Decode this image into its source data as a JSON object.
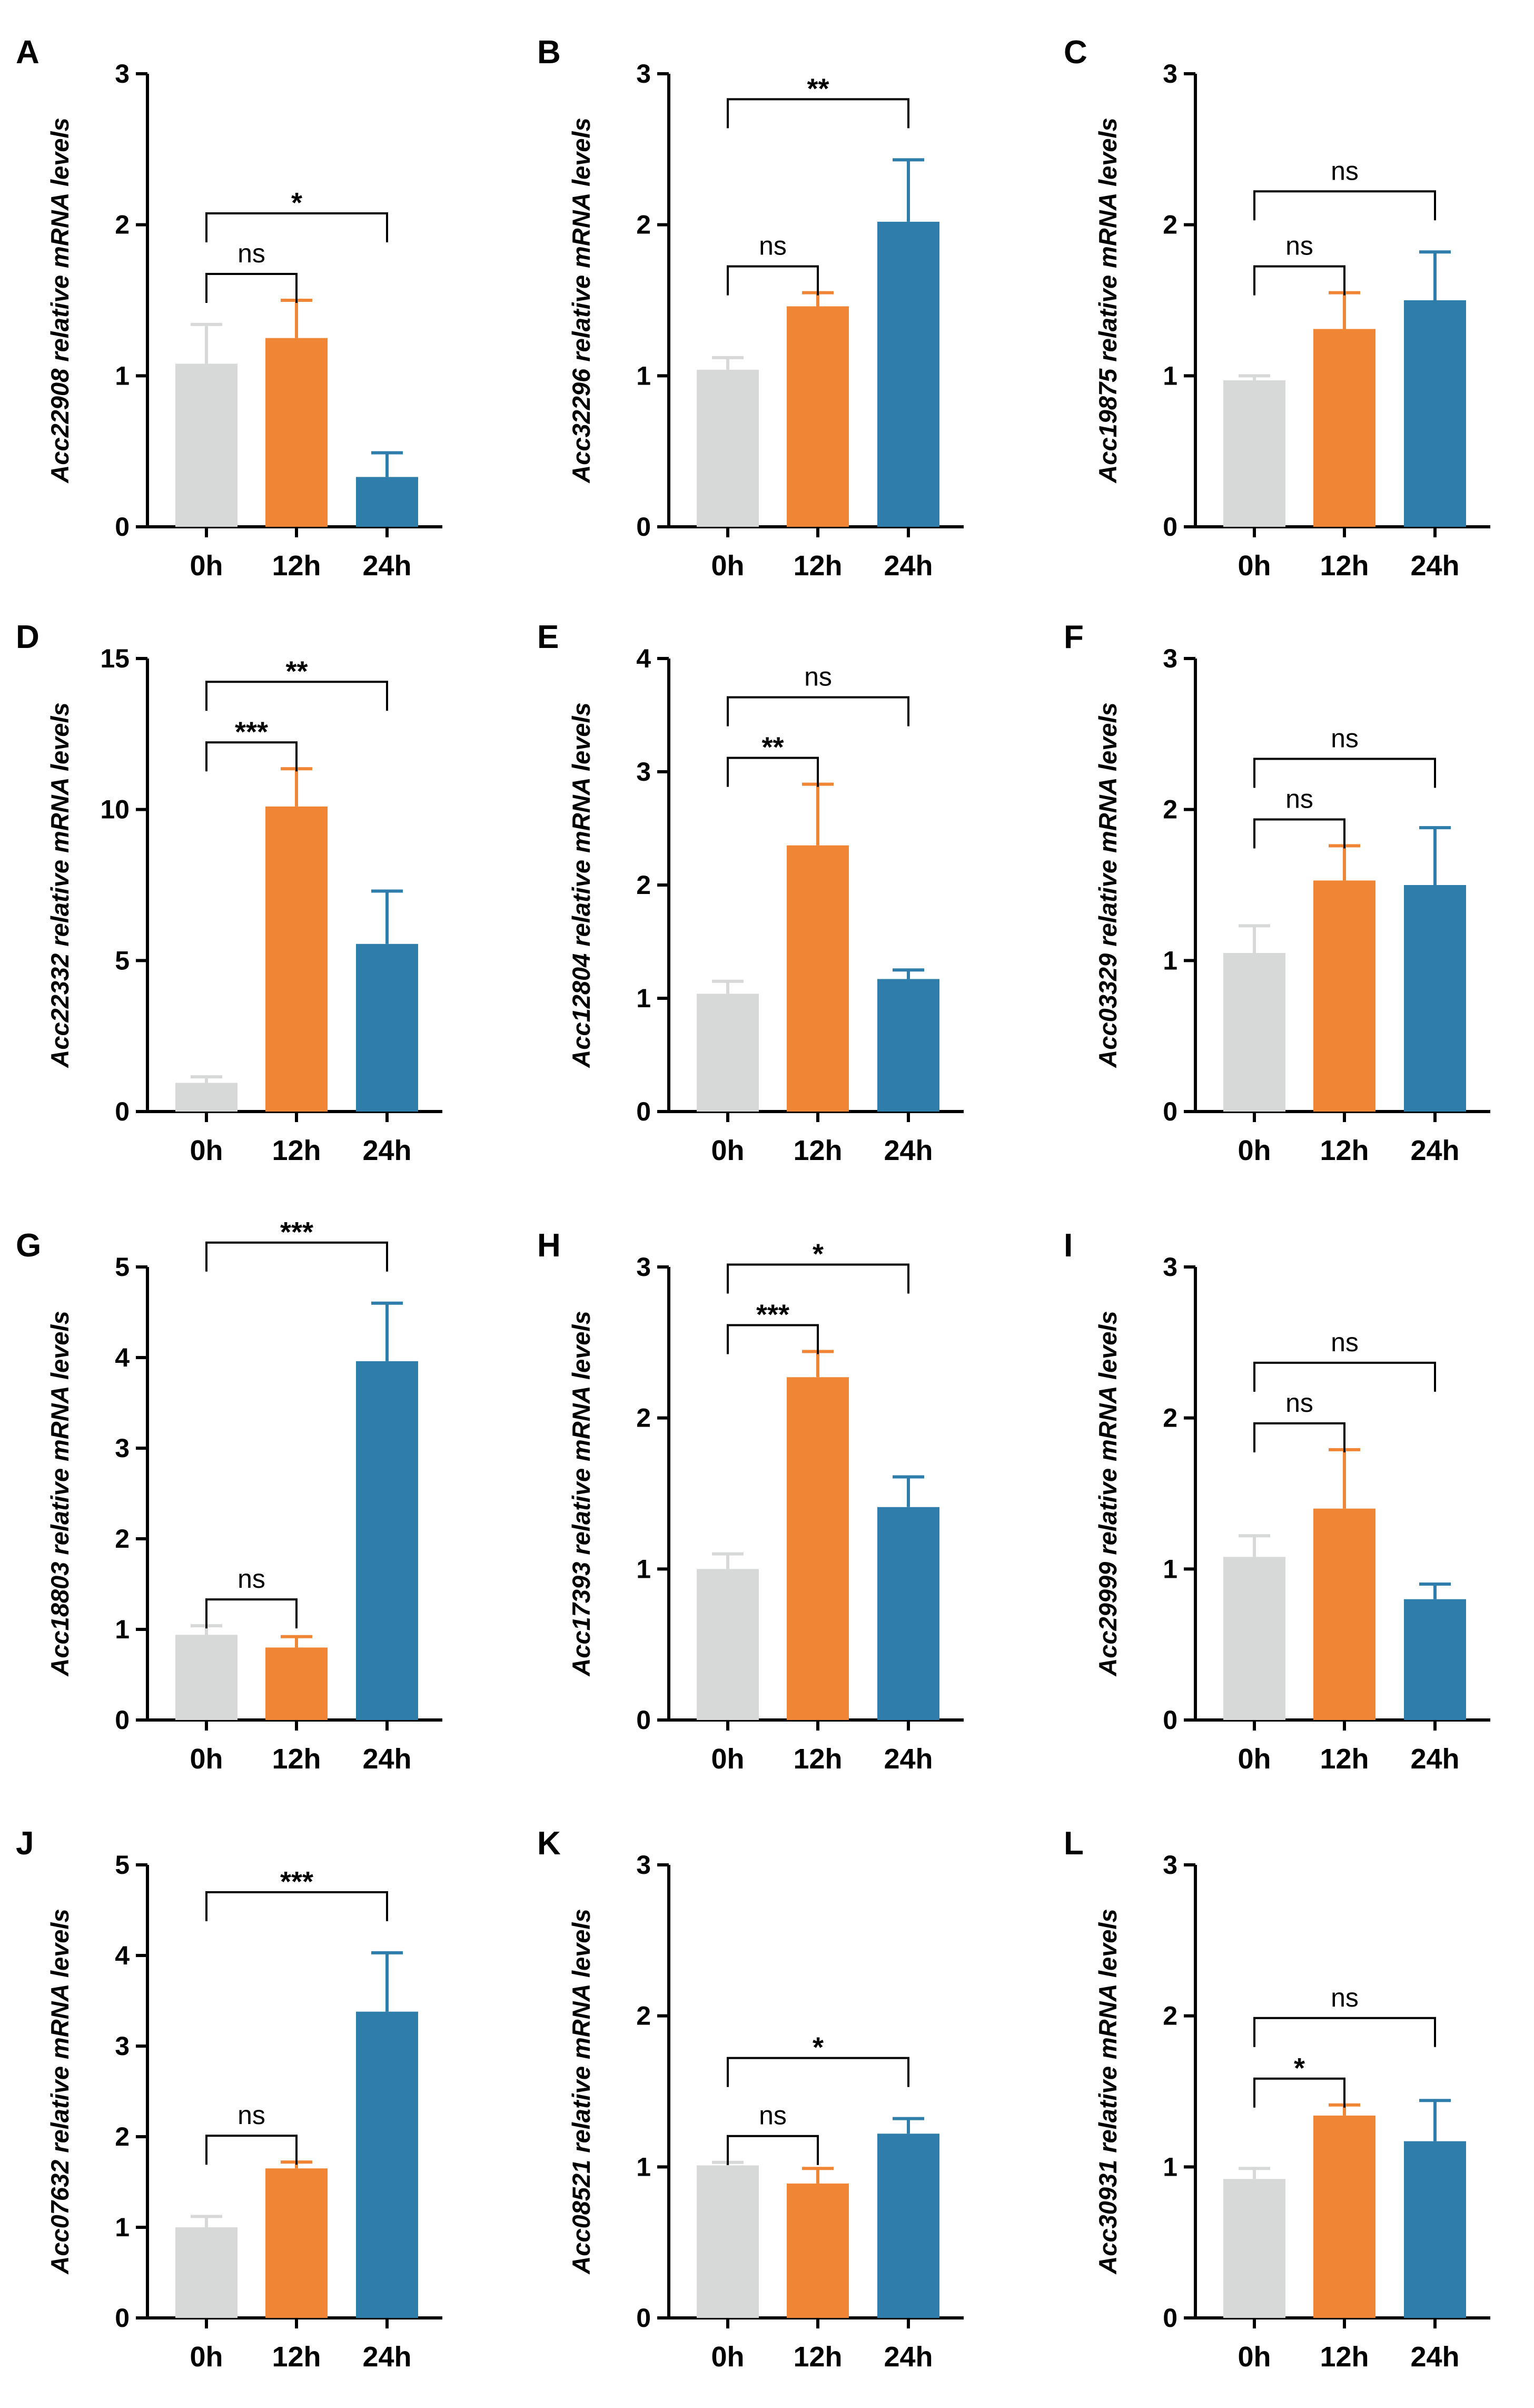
{
  "figure": {
    "colors": {
      "0h": "#d7d8d8",
      "12h": "#ef8535",
      "24h": "#2f7daa"
    },
    "categories": [
      "0h",
      "12h",
      "24h"
    ]
  },
  "chart_data": [
    {
      "panel": "A",
      "type": "bar",
      "ylabel_gene": "Acc22908",
      "ylabel_rest": "relative mRNA levels",
      "ylim": [
        0,
        3
      ],
      "yticks": [
        0,
        1,
        2,
        3
      ],
      "categories": [
        "0h",
        "12h",
        "24h"
      ],
      "values": [
        1.08,
        1.25,
        0.33
      ],
      "errors": [
        0.26,
        0.25,
        0.16
      ],
      "comparisons": [
        {
          "from": "0h",
          "to": "12h",
          "label": "ns"
        },
        {
          "from": "0h",
          "to": "24h",
          "label": "*"
        }
      ]
    },
    {
      "panel": "B",
      "type": "bar",
      "ylabel_gene": "Acc32296",
      "ylabel_rest": "relative mRNA levels",
      "ylim": [
        0,
        3
      ],
      "yticks": [
        0,
        1,
        2,
        3
      ],
      "categories": [
        "0h",
        "12h",
        "24h"
      ],
      "values": [
        1.04,
        1.46,
        2.02
      ],
      "errors": [
        0.08,
        0.09,
        0.41
      ],
      "comparisons": [
        {
          "from": "0h",
          "to": "12h",
          "label": "ns"
        },
        {
          "from": "0h",
          "to": "24h",
          "label": "**"
        }
      ]
    },
    {
      "panel": "C",
      "type": "bar",
      "ylabel_gene": "Acc19875",
      "ylabel_rest": "relative mRNA levels",
      "ylim": [
        0,
        3
      ],
      "yticks": [
        0,
        1,
        2,
        3
      ],
      "categories": [
        "0h",
        "12h",
        "24h"
      ],
      "values": [
        0.97,
        1.31,
        1.5
      ],
      "errors": [
        0.03,
        0.24,
        0.32
      ],
      "comparisons": [
        {
          "from": "0h",
          "to": "12h",
          "label": "ns"
        },
        {
          "from": "0h",
          "to": "24h",
          "label": "ns"
        }
      ]
    },
    {
      "panel": "D",
      "type": "bar",
      "ylabel_gene": "Acc22332",
      "ylabel_rest": "relative mRNA levels",
      "ylim": [
        0,
        15
      ],
      "yticks": [
        0,
        5,
        10,
        15
      ],
      "categories": [
        "0h",
        "12h",
        "24h"
      ],
      "values": [
        0.95,
        10.1,
        5.55
      ],
      "errors": [
        0.2,
        1.25,
        1.75
      ],
      "comparisons": [
        {
          "from": "0h",
          "to": "12h",
          "label": "***"
        },
        {
          "from": "0h",
          "to": "24h",
          "label": "**"
        }
      ]
    },
    {
      "panel": "E",
      "type": "bar",
      "ylabel_gene": "Acc12804",
      "ylabel_rest": "relative mRNA levels",
      "ylim": [
        0,
        4
      ],
      "yticks": [
        0,
        1,
        2,
        3,
        4
      ],
      "categories": [
        "0h",
        "12h",
        "24h"
      ],
      "values": [
        1.04,
        2.35,
        1.17
      ],
      "errors": [
        0.11,
        0.54,
        0.08
      ],
      "comparisons": [
        {
          "from": "0h",
          "to": "12h",
          "label": "**"
        },
        {
          "from": "0h",
          "to": "24h",
          "label": "ns"
        }
      ]
    },
    {
      "panel": "F",
      "type": "bar",
      "ylabel_gene": "Acc03329",
      "ylabel_rest": "relative mRNA levels",
      "ylim": [
        0,
        3
      ],
      "yticks": [
        0,
        1,
        2,
        3
      ],
      "categories": [
        "0h",
        "12h",
        "24h"
      ],
      "values": [
        1.05,
        1.53,
        1.5
      ],
      "errors": [
        0.18,
        0.23,
        0.38
      ],
      "comparisons": [
        {
          "from": "0h",
          "to": "12h",
          "label": "ns"
        },
        {
          "from": "0h",
          "to": "24h",
          "label": "ns"
        }
      ]
    },
    {
      "panel": "G",
      "type": "bar",
      "ylabel_gene": "Acc18803",
      "ylabel_rest": "relative mRNA levels",
      "ylim": [
        0,
        5
      ],
      "yticks": [
        0,
        1,
        2,
        3,
        4,
        5
      ],
      "categories": [
        "0h",
        "12h",
        "24h"
      ],
      "values": [
        0.94,
        0.8,
        3.96
      ],
      "errors": [
        0.1,
        0.12,
        0.64
      ],
      "comparisons": [
        {
          "from": "0h",
          "to": "12h",
          "label": "ns"
        },
        {
          "from": "0h",
          "to": "24h",
          "label": "***"
        }
      ]
    },
    {
      "panel": "H",
      "type": "bar",
      "ylabel_gene": "Acc17393",
      "ylabel_rest": "relative mRNA levels",
      "ylim": [
        0,
        3
      ],
      "yticks": [
        0,
        1,
        2,
        3
      ],
      "categories": [
        "0h",
        "12h",
        "24h"
      ],
      "values": [
        1.0,
        2.27,
        1.41
      ],
      "errors": [
        0.1,
        0.17,
        0.2
      ],
      "comparisons": [
        {
          "from": "0h",
          "to": "12h",
          "label": "***"
        },
        {
          "from": "0h",
          "to": "24h",
          "label": "*"
        }
      ]
    },
    {
      "panel": "I",
      "type": "bar",
      "ylabel_gene": "Acc29999",
      "ylabel_rest": "relative mRNA levels",
      "ylim": [
        0,
        3
      ],
      "yticks": [
        0,
        1,
        2,
        3
      ],
      "categories": [
        "0h",
        "12h",
        "24h"
      ],
      "values": [
        1.08,
        1.4,
        0.8
      ],
      "errors": [
        0.14,
        0.39,
        0.1
      ],
      "comparisons": [
        {
          "from": "0h",
          "to": "12h",
          "label": "ns"
        },
        {
          "from": "0h",
          "to": "24h",
          "label": "ns"
        }
      ]
    },
    {
      "panel": "J",
      "type": "bar",
      "ylabel_gene": "Acc07632",
      "ylabel_rest": "relative mRNA levels",
      "ylim": [
        0,
        5
      ],
      "yticks": [
        0,
        1,
        2,
        3,
        4,
        5
      ],
      "categories": [
        "0h",
        "12h",
        "24h"
      ],
      "values": [
        1.0,
        1.65,
        3.38
      ],
      "errors": [
        0.12,
        0.07,
        0.65
      ],
      "comparisons": [
        {
          "from": "0h",
          "to": "12h",
          "label": "ns"
        },
        {
          "from": "0h",
          "to": "24h",
          "label": "***"
        }
      ]
    },
    {
      "panel": "K",
      "type": "bar",
      "ylabel_gene": "Acc08521",
      "ylabel_rest": "relative mRNA levels",
      "ylim": [
        0,
        3
      ],
      "yticks": [
        0,
        1,
        2,
        3
      ],
      "categories": [
        "0h",
        "12h",
        "24h"
      ],
      "values": [
        1.01,
        0.89,
        1.22
      ],
      "errors": [
        0.02,
        0.1,
        0.1
      ],
      "comparisons": [
        {
          "from": "0h",
          "to": "12h",
          "label": "ns"
        },
        {
          "from": "0h",
          "to": "24h",
          "label": "*"
        }
      ]
    },
    {
      "panel": "L",
      "type": "bar",
      "ylabel_gene": "Acc30931",
      "ylabel_rest": "relative mRNA levels",
      "ylim": [
        0,
        3
      ],
      "yticks": [
        0,
        1,
        2,
        3
      ],
      "categories": [
        "0h",
        "12h",
        "24h"
      ],
      "values": [
        0.92,
        1.34,
        1.17
      ],
      "errors": [
        0.07,
        0.07,
        0.27
      ],
      "comparisons": [
        {
          "from": "0h",
          "to": "12h",
          "label": "*"
        },
        {
          "from": "0h",
          "to": "24h",
          "label": "ns"
        }
      ]
    }
  ]
}
